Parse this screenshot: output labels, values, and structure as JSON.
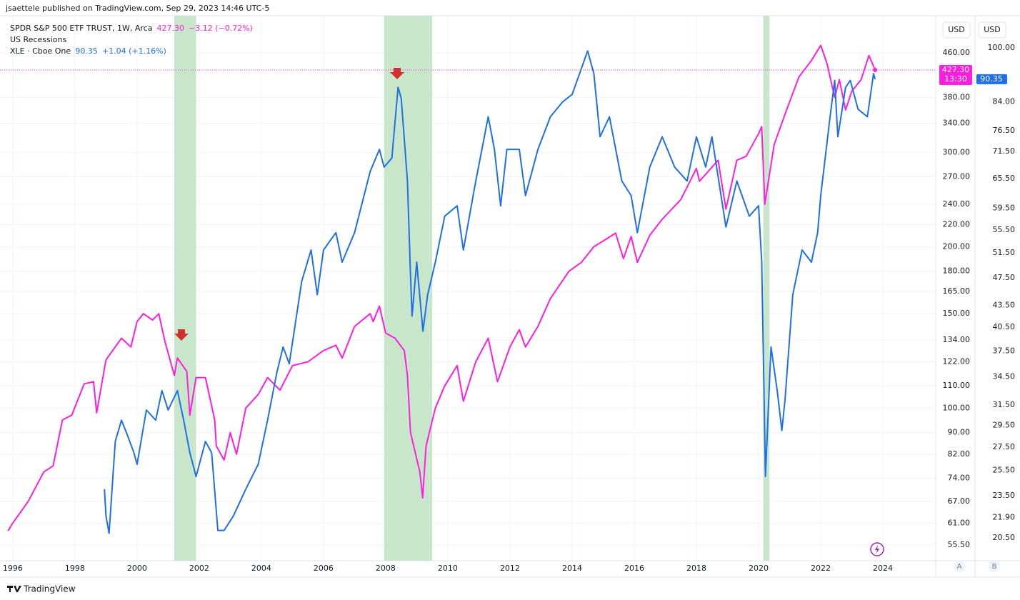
{
  "header": "jsaettele published on TradingView.com, Sep 29, 2023 14:46 UTC-5",
  "footer": "TradingView",
  "currency": [
    "USD",
    "USD"
  ],
  "scale_buttons": [
    "A",
    "B"
  ],
  "chart_data": {
    "type": "line",
    "log": true,
    "grid": true,
    "recession_name": "US Recessions",
    "recessions": [
      [
        2001.2,
        2001.9
      ],
      [
        2007.95,
        2009.5
      ],
      [
        2020.15,
        2020.35
      ]
    ],
    "xlim": [
      1995.82,
      2025.7
    ],
    "xticks": [
      1996,
      1998,
      2000,
      2002,
      2004,
      2006,
      2008,
      2010,
      2012,
      2014,
      2016,
      2018,
      2020,
      2022,
      2024
    ],
    "ylim": [
      51.9,
      526.5
    ],
    "yticks": [
      {
        "value": 460,
        "label": "460.00"
      },
      {
        "value": 380,
        "label": "380.00"
      },
      {
        "value": 340,
        "label": "340.00"
      },
      {
        "value": 300,
        "label": "300.00"
      },
      {
        "value": 270,
        "label": "270.00"
      },
      {
        "value": 240,
        "label": "240.00"
      },
      {
        "value": 220,
        "label": "220.00"
      },
      {
        "value": 200,
        "label": "200.00"
      },
      {
        "value": 180,
        "label": "180.00"
      },
      {
        "value": 165,
        "label": "165.00"
      },
      {
        "value": 150,
        "label": "150.00"
      },
      {
        "value": 134,
        "label": "134.00"
      },
      {
        "value": 122,
        "label": "122.00"
      },
      {
        "value": 110,
        "label": "110.00"
      },
      {
        "value": 100,
        "label": "100.00"
      },
      {
        "value": 90,
        "label": "90.00"
      },
      {
        "value": 82,
        "label": "82.00"
      },
      {
        "value": 74,
        "label": "74.00"
      },
      {
        "value": 67,
        "label": "67.00"
      },
      {
        "value": 61,
        "label": "61.00"
      },
      {
        "value": 55.5,
        "label": "55.50"
      }
    ],
    "y2lim": [
      19.04,
      108.9
    ],
    "y2ticks": [
      {
        "value": 100,
        "label": "100.00"
      },
      {
        "value": 84,
        "label": "84.00"
      },
      {
        "value": 76.5,
        "label": "76.50"
      },
      {
        "value": 71.5,
        "label": "71.50"
      },
      {
        "value": 65.5,
        "label": "65.50"
      },
      {
        "value": 59.5,
        "label": "59.50"
      },
      {
        "value": 55.5,
        "label": "55.50"
      },
      {
        "value": 51.5,
        "label": "51.50"
      },
      {
        "value": 47.5,
        "label": "47.50"
      },
      {
        "value": 43.5,
        "label": "43.50"
      },
      {
        "value": 40.5,
        "label": "40.50"
      },
      {
        "value": 37.5,
        "label": "37.50"
      },
      {
        "value": 34.5,
        "label": "34.50"
      },
      {
        "value": 31.5,
        "label": "31.50"
      },
      {
        "value": 29.5,
        "label": "29.50"
      },
      {
        "value": 27.5,
        "label": "27.50"
      },
      {
        "value": 25.5,
        "label": "25.50"
      },
      {
        "value": 23.5,
        "label": "23.50"
      },
      {
        "value": 21.9,
        "label": "21.90"
      },
      {
        "value": 20.5,
        "label": "20.50"
      }
    ],
    "series": [
      {
        "name": "SPDR S&P 500 ETF TRUST, 1W, Arca",
        "color": "#ff1ee0",
        "price": "427.30",
        "change": "−3.12 (−0.72%)",
        "last": {
          "value": 427.3,
          "label": "427.30"
        },
        "countdown": "13:30",
        "x": [
          1995.85,
          1996.0,
          1996.5,
          1997.0,
          1997.3,
          1997.6,
          1997.9,
          1998.3,
          1998.6,
          1998.7,
          1999.0,
          1999.5,
          1999.8,
          2000.0,
          2000.2,
          2000.5,
          2000.7,
          2000.9,
          2001.2,
          2001.3,
          2001.6,
          2001.7,
          2001.9,
          2002.2,
          2002.5,
          2002.55,
          2002.8,
          2003.0,
          2003.2,
          2003.5,
          2003.9,
          2004.2,
          2004.6,
          2005.0,
          2005.5,
          2006.0,
          2006.4,
          2006.6,
          2007.0,
          2007.5,
          2007.6,
          2007.8,
          2008.0,
          2008.3,
          2008.6,
          2008.7,
          2008.8,
          2008.9,
          2009.1,
          2009.19,
          2009.3,
          2009.6,
          2009.9,
          2010.3,
          2010.5,
          2010.9,
          2011.3,
          2011.6,
          2012.0,
          2012.3,
          2012.5,
          2012.9,
          2013.3,
          2013.9,
          2014.3,
          2014.7,
          2015.0,
          2015.4,
          2015.65,
          2015.9,
          2016.1,
          2016.5,
          2016.9,
          2017.5,
          2018.0,
          2018.1,
          2018.7,
          2018.95,
          2019.3,
          2019.6,
          2020.0,
          2020.1,
          2020.2,
          2020.5,
          2020.9,
          2021.3,
          2021.7,
          2022.0,
          2022.2,
          2022.45,
          2022.6,
          2022.8,
          2023.0,
          2023.3,
          2023.55,
          2023.75
        ],
        "values": [
          59,
          61,
          67,
          76,
          78,
          95,
          97,
          111,
          112,
          98,
          123,
          135,
          130,
          145,
          150,
          146,
          150,
          133,
          115,
          124,
          117,
          97,
          114,
          114,
          95,
          85,
          80,
          90,
          82,
          100,
          106,
          114,
          108,
          120,
          122,
          128,
          131,
          124,
          142,
          150,
          145,
          155,
          138,
          135,
          128,
          115,
          90,
          85,
          76,
          68,
          85,
          100,
          110,
          120,
          103,
          122,
          135,
          112,
          130,
          140,
          130,
          142,
          160,
          180,
          187,
          200,
          205,
          212,
          190,
          209,
          187,
          210,
          225,
          245,
          280,
          265,
          290,
          235,
          290,
          295,
          325,
          335,
          240,
          310,
          360,
          415,
          445,
          475,
          440,
          380,
          410,
          360,
          390,
          410,
          455,
          427.3
        ]
      },
      {
        "name": "XLE · Cboe One",
        "color": "#1e6fe8",
        "axis": "y2",
        "price": "90.35",
        "change": "+1.04 (+1.16%)",
        "last": {
          "value": 90.35,
          "label": "90.35"
        },
        "x": [
          1998.95,
          1999.0,
          1999.1,
          1999.3,
          1999.5,
          1999.7,
          1999.9,
          2000.0,
          2000.3,
          2000.6,
          2000.8,
          2000.9,
          2001.0,
          2001.3,
          2001.5,
          2001.7,
          2001.9,
          2002.2,
          2002.4,
          2002.6,
          2002.8,
          2003.1,
          2003.5,
          2003.9,
          2004.2,
          2004.5,
          2004.7,
          2004.9,
          2005.3,
          2005.6,
          2005.8,
          2006.0,
          2006.4,
          2006.6,
          2007.0,
          2007.5,
          2007.8,
          2007.95,
          2008.2,
          2008.4,
          2008.5,
          2008.7,
          2008.8,
          2008.85,
          2009.0,
          2009.2,
          2009.35,
          2009.6,
          2009.9,
          2010.3,
          2010.5,
          2010.9,
          2011.3,
          2011.5,
          2011.7,
          2011.9,
          2012.3,
          2012.5,
          2012.9,
          2013.3,
          2013.7,
          2014.0,
          2014.5,
          2014.7,
          2014.9,
          2015.2,
          2015.6,
          2015.9,
          2016.1,
          2016.5,
          2016.9,
          2017.3,
          2017.7,
          2018.0,
          2018.3,
          2018.5,
          2018.95,
          2019.3,
          2019.7,
          2020.0,
          2020.1,
          2020.22,
          2020.4,
          2020.6,
          2020.75,
          2020.85,
          2021.1,
          2021.4,
          2021.7,
          2021.9,
          2022.0,
          2022.3,
          2022.45,
          2022.55,
          2022.8,
          2022.95,
          2023.2,
          2023.5,
          2023.7,
          2023.75
        ],
        "values": [
          24,
          22,
          20.8,
          28,
          30,
          28.5,
          27,
          26,
          31,
          30,
          33,
          32,
          31,
          33,
          30,
          27,
          25,
          28,
          27,
          21,
          21,
          22,
          24,
          26,
          30,
          35,
          38,
          36,
          47,
          52,
          45,
          52,
          55,
          50,
          55,
          67,
          72,
          68,
          70,
          88,
          85,
          65,
          48,
          42,
          50,
          40,
          45,
          50,
          58,
          60,
          52,
          65,
          80,
          72,
          60,
          72,
          72,
          62,
          72,
          80,
          84,
          86,
          99,
          92,
          75,
          80,
          65,
          62,
          55,
          68,
          75,
          68,
          65,
          75,
          68,
          75,
          56,
          65,
          58,
          60,
          50,
          25,
          38,
          33,
          29,
          32,
          45,
          52,
          50,
          55,
          62,
          80,
          90,
          75,
          88,
          90,
          82,
          80,
          92,
          90.35
        ]
      }
    ]
  }
}
